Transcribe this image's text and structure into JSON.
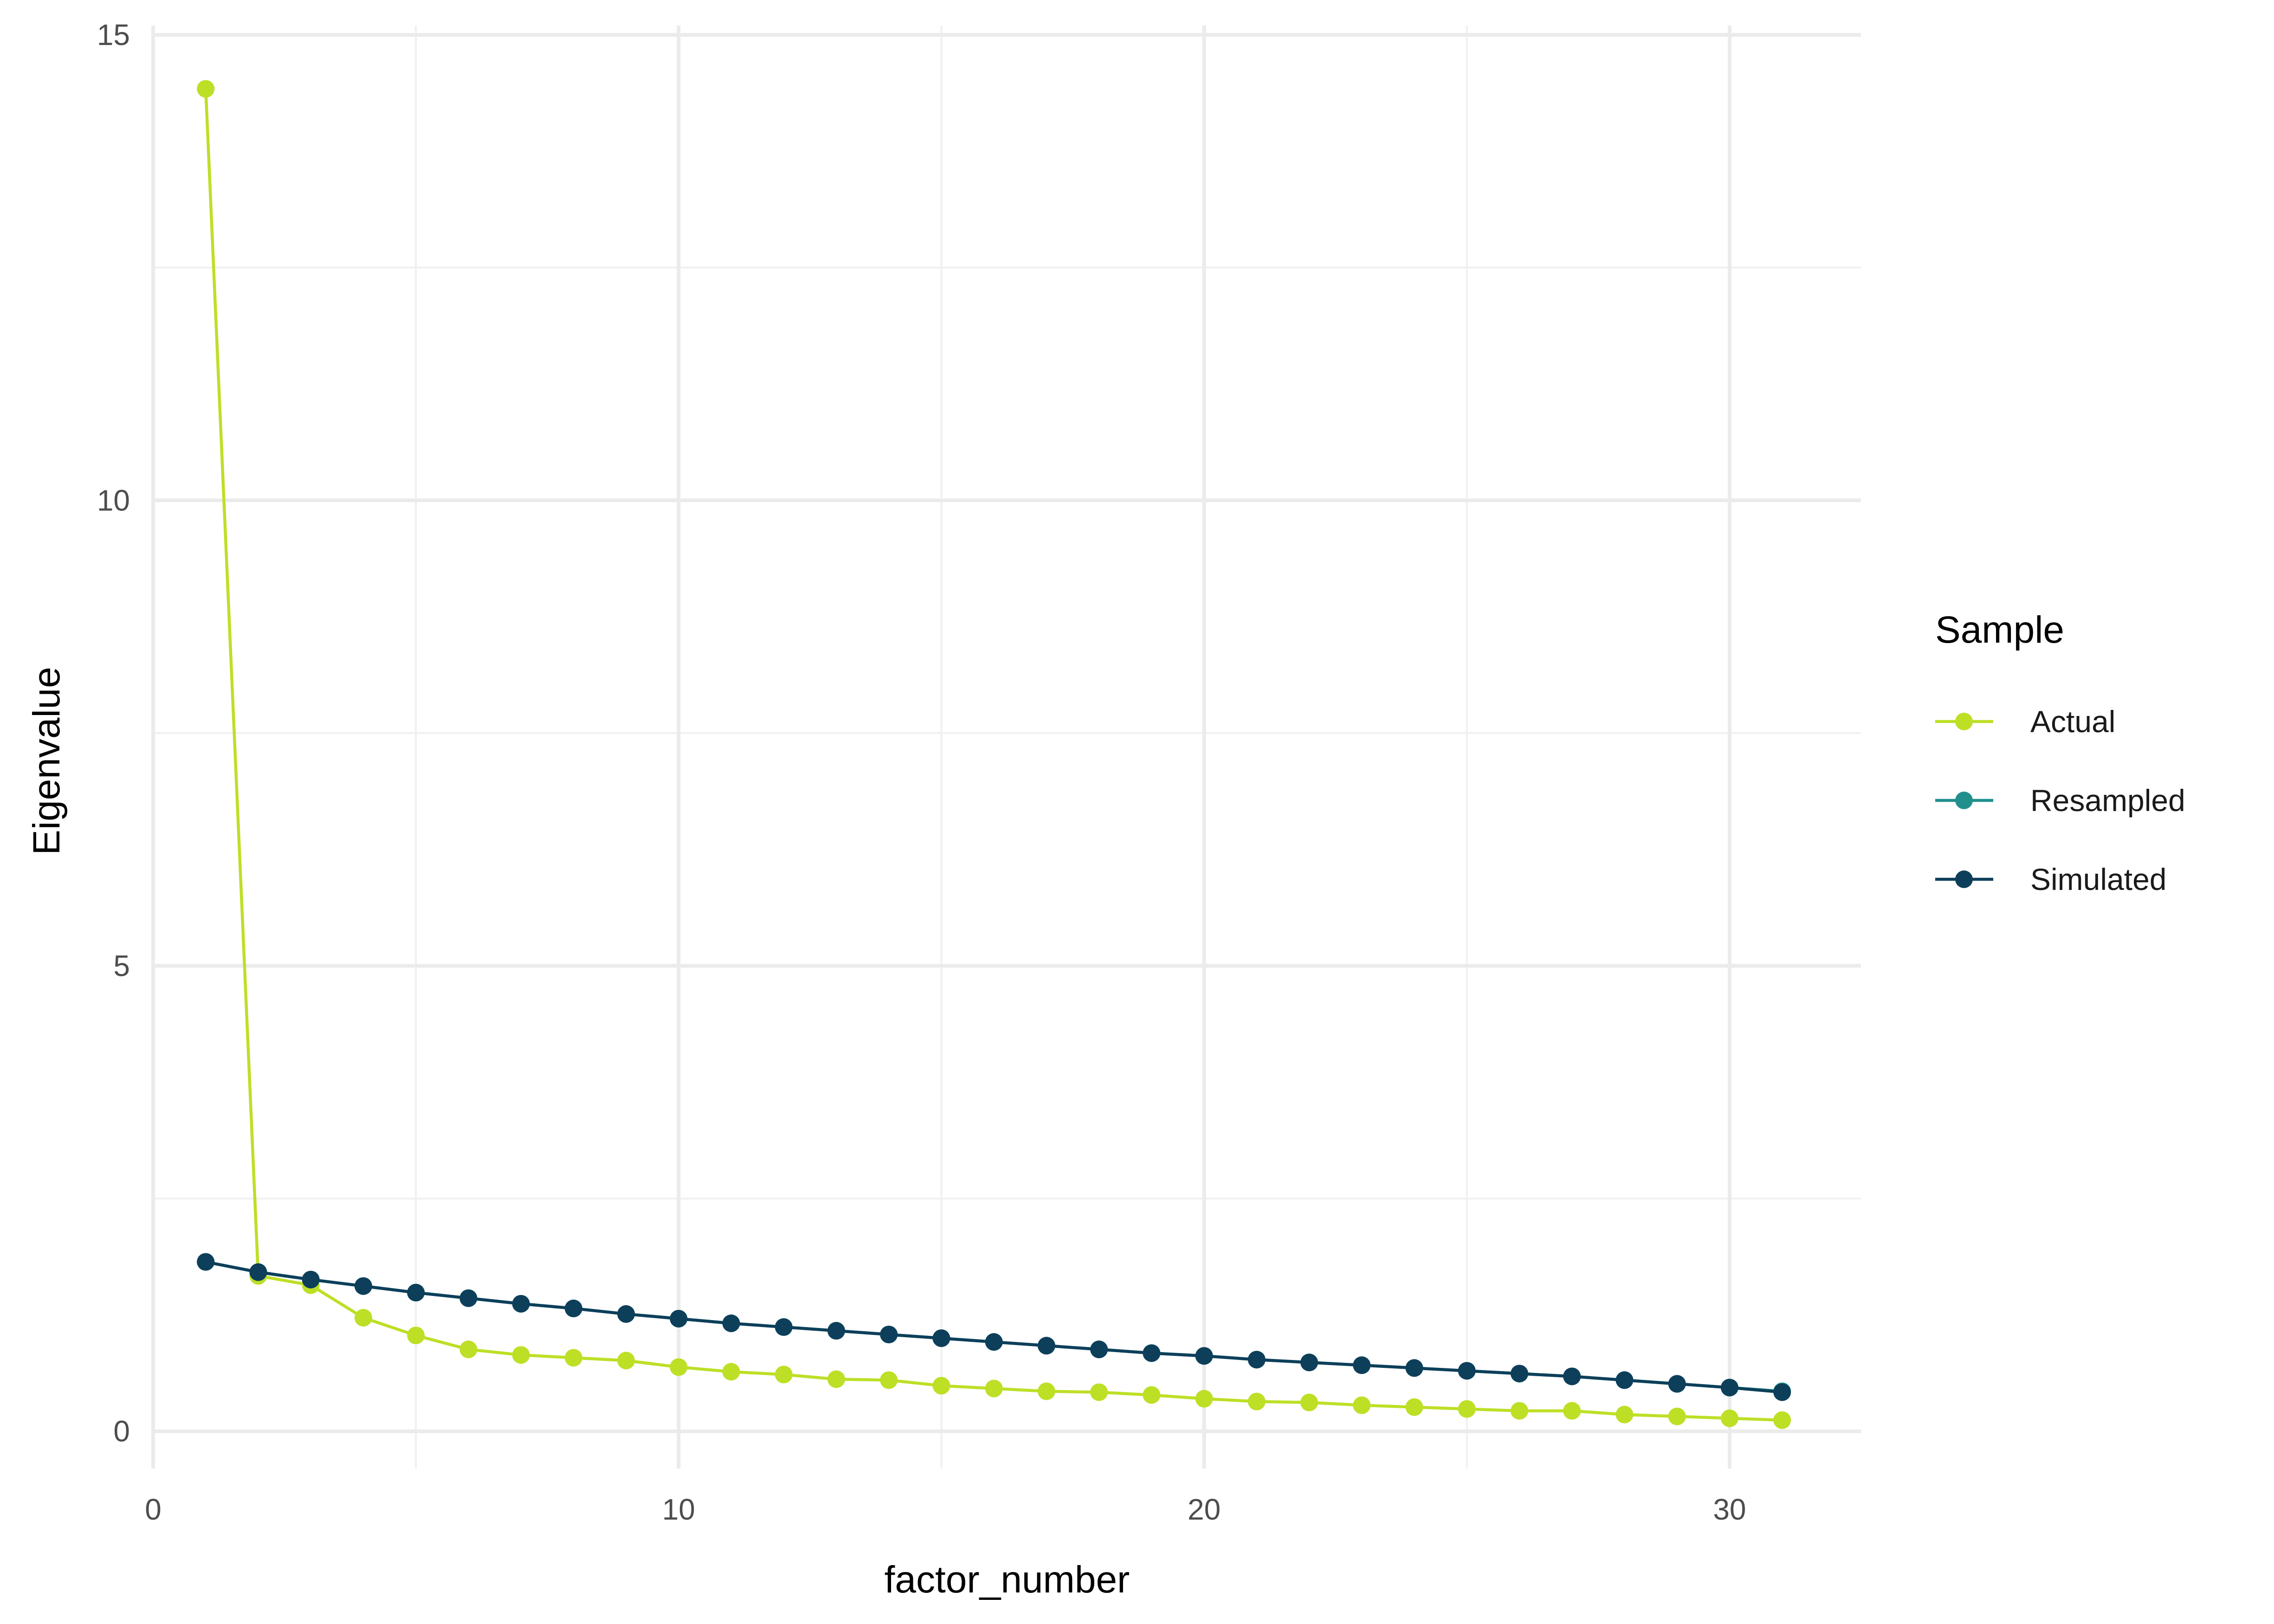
{
  "chart_data": {
    "type": "line",
    "title": "",
    "xlabel": "factor_number",
    "ylabel": "Eigenvalue",
    "xlim": [
      0,
      32.5
    ],
    "ylim": [
      -0.4,
      15.1
    ],
    "xticks": [
      0,
      10,
      20,
      30
    ],
    "yticks": [
      0,
      5,
      10,
      15
    ],
    "grid": true,
    "legend": {
      "title": "Sample",
      "position": "right"
    },
    "x": [
      1,
      2,
      3,
      4,
      5,
      6,
      7,
      8,
      9,
      10,
      11,
      12,
      13,
      14,
      15,
      16,
      17,
      18,
      19,
      20,
      21,
      22,
      23,
      24,
      25,
      26,
      27,
      28,
      29,
      30,
      31
    ],
    "series": [
      {
        "name": "Actual",
        "color": "#bddf26",
        "values": [
          14.42,
          1.67,
          1.57,
          1.22,
          1.03,
          0.88,
          0.82,
          0.79,
          0.76,
          0.69,
          0.64,
          0.61,
          0.56,
          0.55,
          0.49,
          0.46,
          0.43,
          0.42,
          0.39,
          0.35,
          0.32,
          0.31,
          0.28,
          0.26,
          0.24,
          0.22,
          0.22,
          0.18,
          0.16,
          0.14,
          0.12
        ]
      },
      {
        "name": "Resampled",
        "color": "#21908d",
        "values": [
          1.82,
          1.71,
          1.63,
          1.56,
          1.49,
          1.43,
          1.37,
          1.32,
          1.26,
          1.21,
          1.16,
          1.12,
          1.08,
          1.04,
          1.0,
          0.96,
          0.92,
          0.88,
          0.84,
          0.81,
          0.77,
          0.74,
          0.71,
          0.68,
          0.65,
          0.62,
          0.59,
          0.55,
          0.51,
          0.47,
          0.43
        ]
      },
      {
        "name": "Simulated",
        "color": "#0d3f5a",
        "values": [
          1.82,
          1.71,
          1.63,
          1.56,
          1.49,
          1.43,
          1.37,
          1.32,
          1.26,
          1.21,
          1.16,
          1.12,
          1.08,
          1.04,
          1.0,
          0.96,
          0.92,
          0.88,
          0.84,
          0.81,
          0.77,
          0.74,
          0.71,
          0.68,
          0.65,
          0.62,
          0.59,
          0.55,
          0.51,
          0.47,
          0.42
        ]
      }
    ]
  }
}
